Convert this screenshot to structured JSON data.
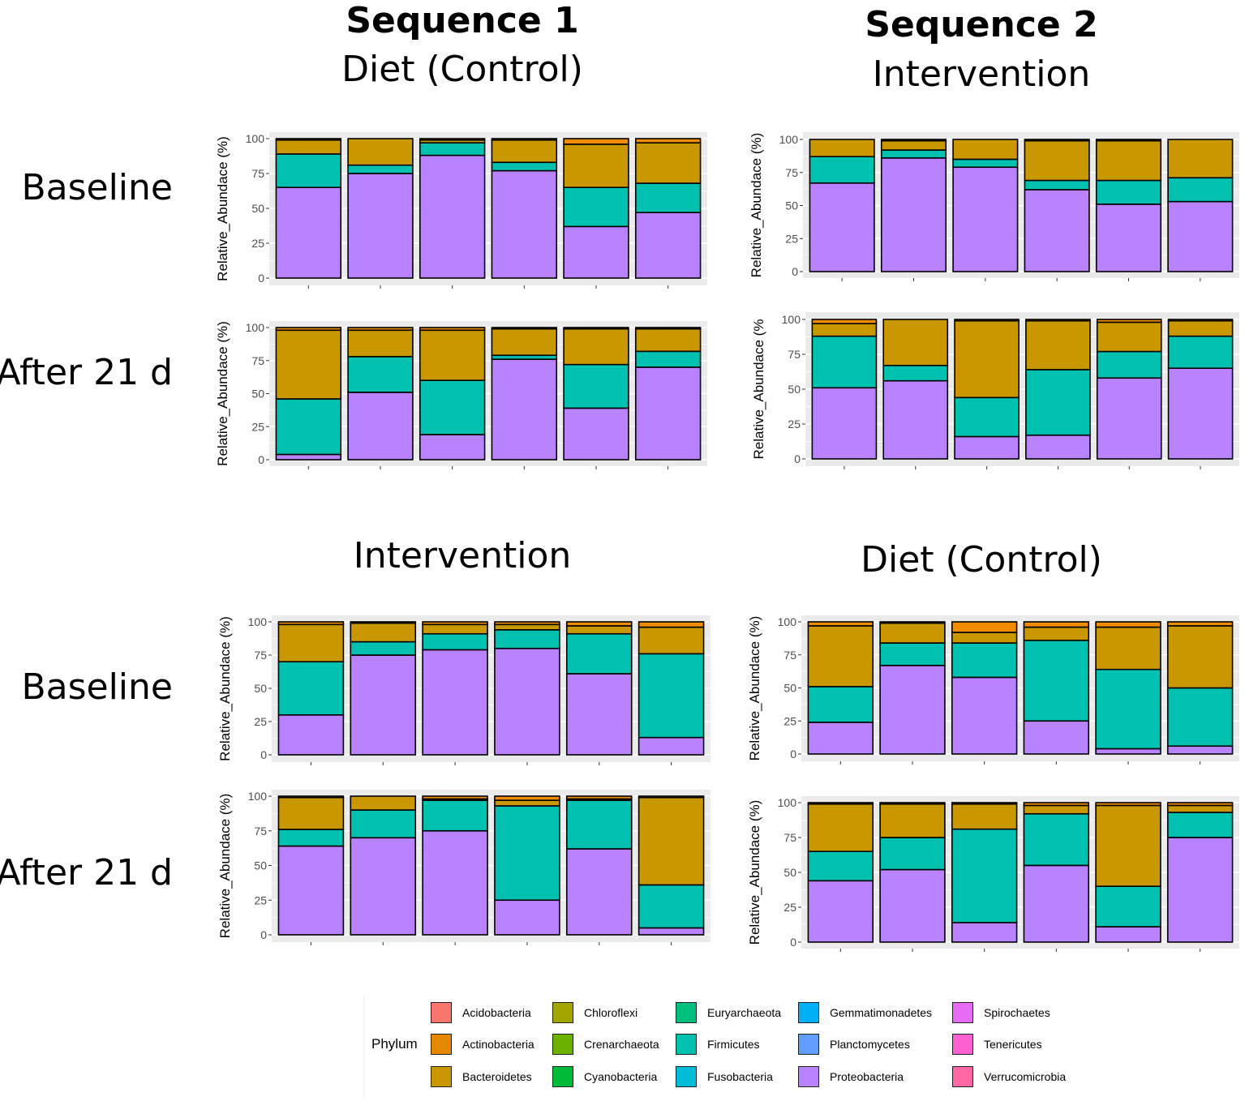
{
  "titles": {
    "seq1": "Sequence 1",
    "seq1_top_group": "Diet (Control)",
    "seq2": "Sequence 2",
    "seq2_top_group": "Intervention",
    "seq1_bottom_group": "Intervention",
    "seq2_bottom_group": "Diet (Control)"
  },
  "row_labels": {
    "baseline_1": "Baseline",
    "after_1": "After 21 d",
    "baseline_2": "Baseline",
    "after_2": "After 21 d"
  },
  "legend": {
    "title": "Phylum",
    "items": [
      {
        "label": "Acidobacteria",
        "color": "#F8766D"
      },
      {
        "label": "Actinobacteria",
        "color": "#E58700"
      },
      {
        "label": "Bacteroidetes",
        "color": "#C99800"
      },
      {
        "label": "Chloroflexi",
        "color": "#A3A500"
      },
      {
        "label": "Crenarchaeota",
        "color": "#6BB100"
      },
      {
        "label": "Cyanobacteria",
        "color": "#00BA38"
      },
      {
        "label": "Euryarchaeota",
        "color": "#00BF7D"
      },
      {
        "label": "Firmicutes",
        "color": "#00C0AF"
      },
      {
        "label": "Fusobacteria",
        "color": "#00BCD8"
      },
      {
        "label": "Gemmatimonadetes",
        "color": "#00B0F6"
      },
      {
        "label": "Planctomycetes",
        "color": "#619CFF"
      },
      {
        "label": "Proteobacteria",
        "color": "#B983FF"
      },
      {
        "label": "Spirochaetes",
        "color": "#E76BF3"
      },
      {
        "label": "Tenericutes",
        "color": "#FD61D1"
      },
      {
        "label": "Verrucomicrobia",
        "color": "#FF67A4"
      }
    ]
  },
  "chart_data": [
    {
      "type": "bar",
      "stacked": true,
      "panel": "Sequence 1 / Diet (Control) / Baseline",
      "ylabel": "Relative_Abundace (%)",
      "ylim": [
        0,
        100
      ],
      "yticks": [
        0,
        25,
        50,
        75,
        100
      ],
      "grid": true,
      "stack_order": [
        "Proteobacteria",
        "Firmicutes",
        "Bacteroidetes",
        "Actinobacteria"
      ],
      "bars": [
        [
          65,
          24,
          10,
          1
        ],
        [
          75,
          6,
          19,
          0
        ],
        [
          88,
          9,
          2,
          1
        ],
        [
          77,
          6,
          16,
          1
        ],
        [
          37,
          28,
          31,
          4
        ],
        [
          47,
          21,
          29,
          3
        ]
      ]
    },
    {
      "type": "bar",
      "stacked": true,
      "panel": "Sequence 1 / Diet (Control) / After 21 d",
      "ylabel": "Relative_Abundace (%)",
      "ylim": [
        0,
        100
      ],
      "yticks": [
        0,
        25,
        50,
        75,
        100
      ],
      "grid": true,
      "stack_order": [
        "Proteobacteria",
        "Firmicutes",
        "Bacteroidetes",
        "Actinobacteria"
      ],
      "bars": [
        [
          4,
          42,
          52,
          2
        ],
        [
          51,
          27,
          20,
          2
        ],
        [
          19,
          41,
          38,
          2
        ],
        [
          76,
          3,
          20,
          1
        ],
        [
          39,
          33,
          27,
          1
        ],
        [
          70,
          12,
          17,
          1
        ]
      ]
    },
    {
      "type": "bar",
      "stacked": true,
      "panel": "Sequence 2 / Intervention / Baseline",
      "ylabel": "Relative_Abundace (%)",
      "ylim": [
        0,
        100
      ],
      "yticks": [
        0,
        25,
        50,
        75,
        100
      ],
      "grid": true,
      "stack_order": [
        "Proteobacteria",
        "Firmicutes",
        "Bacteroidetes",
        "Actinobacteria"
      ],
      "bars": [
        [
          67,
          20,
          13,
          0
        ],
        [
          86,
          6,
          7,
          1
        ],
        [
          79,
          6,
          15,
          0
        ],
        [
          62,
          7,
          30,
          1
        ],
        [
          51,
          18,
          30,
          1
        ],
        [
          53,
          18,
          29,
          0
        ]
      ]
    },
    {
      "type": "bar",
      "stacked": true,
      "panel": "Sequence 2 / Intervention / After 21 d",
      "ylabel": "Relative_Abundace (%",
      "ylim": [
        0,
        100
      ],
      "yticks": [
        0,
        25,
        50,
        75,
        100
      ],
      "grid": true,
      "stack_order": [
        "Proteobacteria",
        "Firmicutes",
        "Bacteroidetes",
        "Actinobacteria"
      ],
      "bars": [
        [
          51,
          37,
          9,
          3
        ],
        [
          56,
          11,
          33,
          0
        ],
        [
          16,
          28,
          55,
          1
        ],
        [
          17,
          47,
          35,
          1
        ],
        [
          58,
          19,
          21,
          2
        ],
        [
          65,
          23,
          11,
          1
        ]
      ]
    },
    {
      "type": "bar",
      "stacked": true,
      "panel": "Sequence 1 / Intervention / Baseline",
      "ylabel": "Relative_Abundace (%)",
      "ylim": [
        0,
        100
      ],
      "yticks": [
        0,
        25,
        50,
        75,
        100
      ],
      "grid": true,
      "stack_order": [
        "Proteobacteria",
        "Firmicutes",
        "Bacteroidetes",
        "Actinobacteria"
      ],
      "bars": [
        [
          30,
          40,
          28,
          2
        ],
        [
          75,
          10,
          14,
          1
        ],
        [
          79,
          12,
          7,
          2
        ],
        [
          80,
          14,
          4,
          2
        ],
        [
          61,
          30,
          6,
          3
        ],
        [
          13,
          63,
          20,
          4
        ]
      ]
    },
    {
      "type": "bar",
      "stacked": true,
      "panel": "Sequence 1 / Intervention / After 21 d",
      "ylabel": "Relative_Abundace (%)",
      "ylim": [
        0,
        100
      ],
      "yticks": [
        0,
        25,
        50,
        75,
        100
      ],
      "grid": true,
      "stack_order": [
        "Proteobacteria",
        "Firmicutes",
        "Bacteroidetes",
        "Actinobacteria"
      ],
      "bars": [
        [
          64,
          12,
          23,
          1
        ],
        [
          70,
          20,
          10,
          0
        ],
        [
          75,
          22,
          1,
          2
        ],
        [
          25,
          68,
          4,
          3
        ],
        [
          62,
          35,
          1,
          2
        ],
        [
          5,
          31,
          63,
          1
        ]
      ]
    },
    {
      "type": "bar",
      "stacked": true,
      "panel": "Sequence 2 / Diet (Control) / Baseline",
      "ylabel": "Relative_Abundace (%)",
      "ylim": [
        0,
        100
      ],
      "yticks": [
        0,
        25,
        50,
        75,
        100
      ],
      "grid": true,
      "stack_order": [
        "Proteobacteria",
        "Firmicutes",
        "Bacteroidetes",
        "Actinobacteria"
      ],
      "bars": [
        [
          24,
          27,
          46,
          3
        ],
        [
          67,
          17,
          15,
          1
        ],
        [
          58,
          26,
          8,
          8
        ],
        [
          25,
          61,
          10,
          4
        ],
        [
          4,
          60,
          32,
          4
        ],
        [
          6,
          44,
          47,
          3
        ]
      ]
    },
    {
      "type": "bar",
      "stacked": true,
      "panel": "Sequence 2 / Diet (Control) / After 21 d",
      "ylabel": "Relative_Abundace (%)",
      "ylim": [
        0,
        100
      ],
      "yticks": [
        0,
        25,
        50,
        75,
        100
      ],
      "grid": true,
      "stack_order": [
        "Proteobacteria",
        "Firmicutes",
        "Bacteroidetes",
        "Actinobacteria"
      ],
      "bars": [
        [
          44,
          21,
          34,
          1
        ],
        [
          52,
          23,
          24,
          1
        ],
        [
          14,
          67,
          18,
          1
        ],
        [
          55,
          37,
          6,
          2
        ],
        [
          11,
          29,
          58,
          2
        ],
        [
          75,
          18,
          5,
          2
        ]
      ]
    }
  ]
}
